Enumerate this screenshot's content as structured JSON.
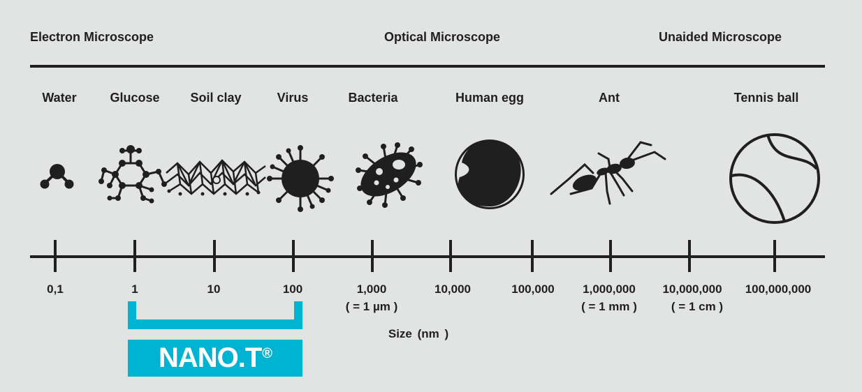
{
  "headers": {
    "electron": "Electron Microscope",
    "optical": "Optical Microscope",
    "unaided": "Unaided Microscope"
  },
  "objects": [
    {
      "label": "Water",
      "icon": "water-molecule-icon"
    },
    {
      "label": "Glucose",
      "icon": "glucose-molecule-icon"
    },
    {
      "label": "Soil clay",
      "icon": "soil-clay-lattice-icon"
    },
    {
      "label": "Virus",
      "icon": "virus-icon"
    },
    {
      "label": "Bacteria",
      "icon": "bacteria-icon"
    },
    {
      "label": "Human egg",
      "icon": "human-egg-icon"
    },
    {
      "label": "Ant",
      "icon": "ant-icon"
    },
    {
      "label": "Tennis ball",
      "icon": "tennis-ball-icon"
    }
  ],
  "scale": {
    "ticks": [
      "0,1",
      "1",
      "10",
      "100",
      "1,000",
      "10,000",
      "100,000",
      "1,000,000",
      "10,000,000",
      "100,000,000"
    ],
    "subs": {
      "1,000": "( = 1 µm )",
      "1,000,000": "( = 1 mm )",
      "10,000,000": "( = 1 cm )"
    },
    "axis_label": "Size  (nm )"
  },
  "brand": {
    "name": "NANO.T",
    "mark": "®",
    "color": "#00b4d1",
    "range": [
      "1",
      "100"
    ]
  }
}
